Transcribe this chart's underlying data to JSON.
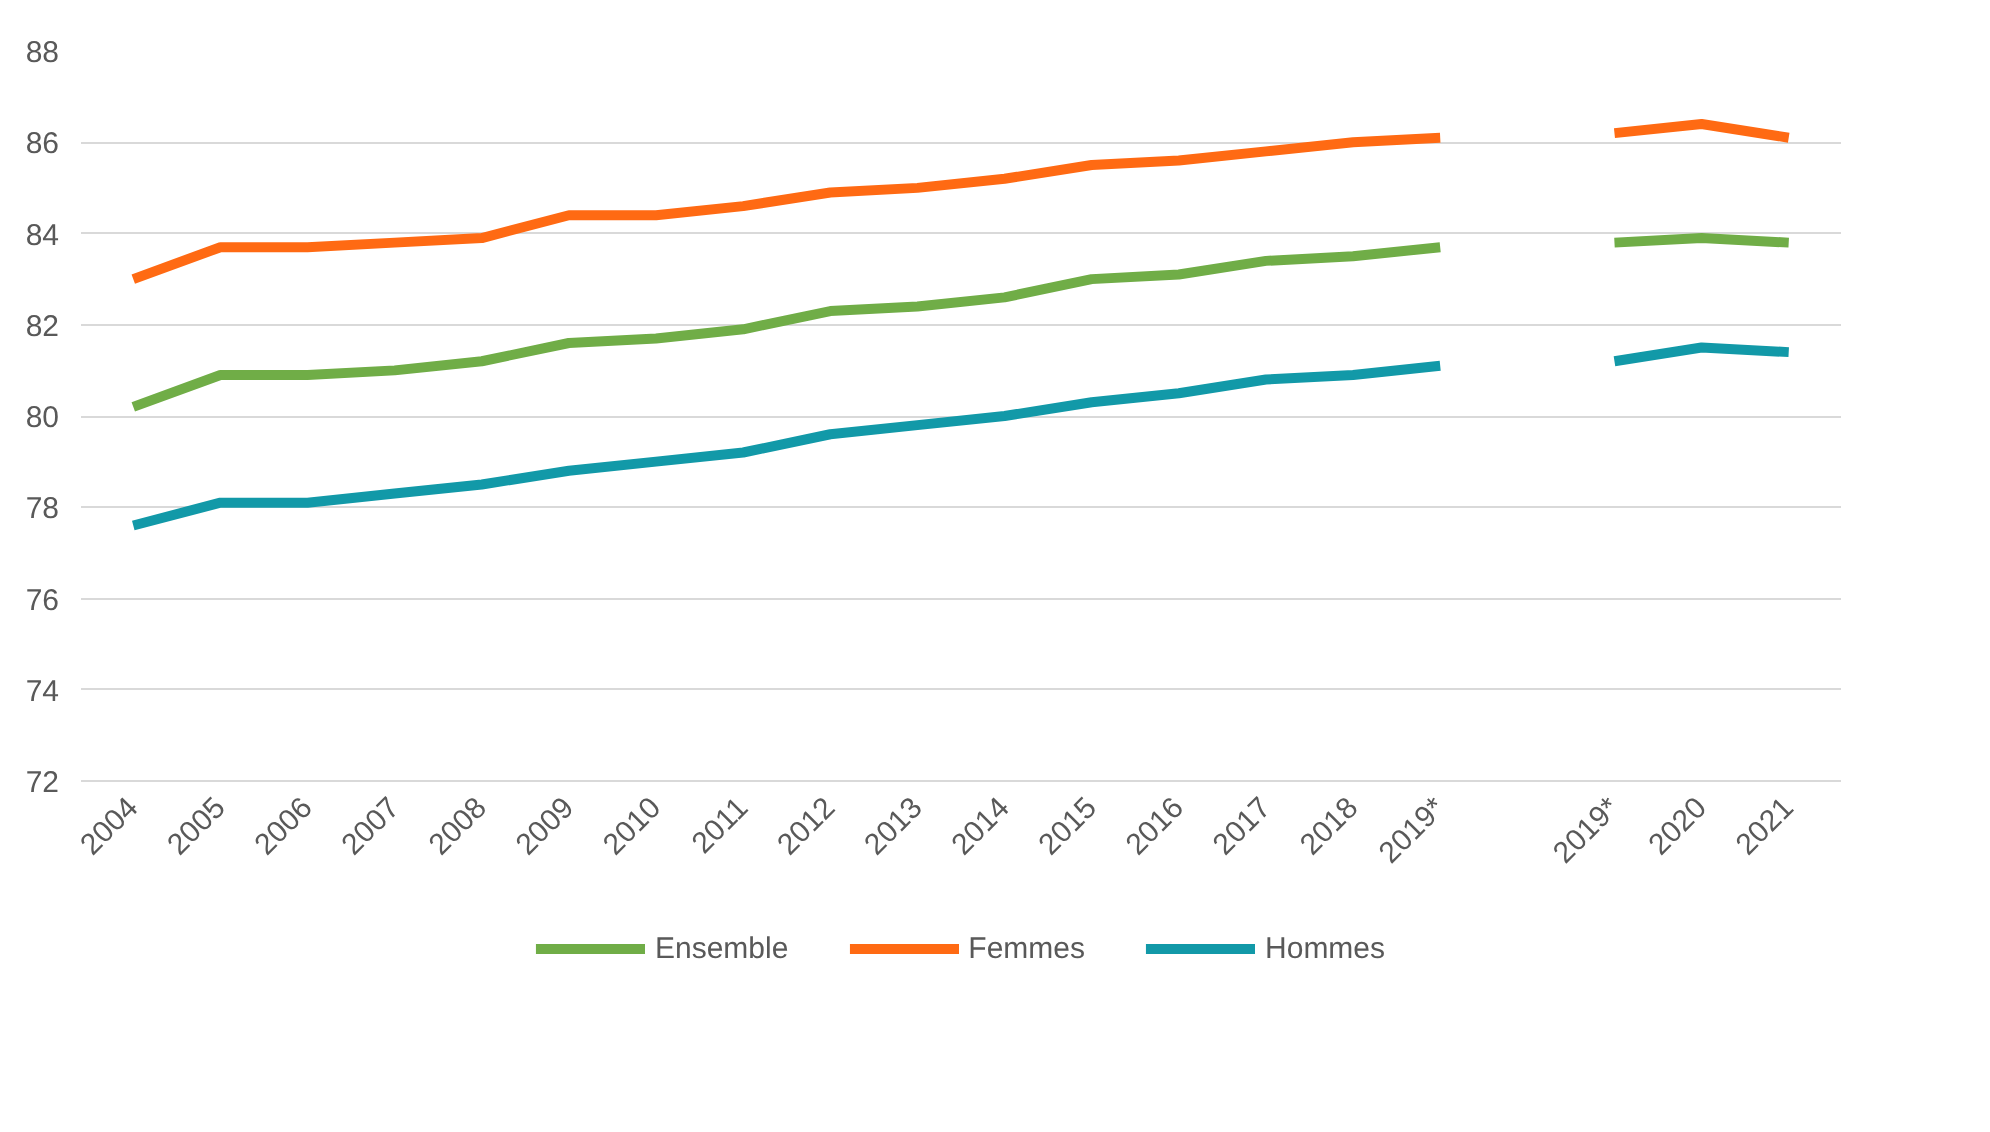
{
  "chart_data": {
    "type": "line",
    "categories": [
      "2004",
      "2005",
      "2006",
      "2007",
      "2008",
      "2009",
      "2010",
      "2011",
      "2012",
      "2013",
      "2014",
      "2015",
      "2016",
      "2017",
      "2018",
      "2019*",
      null,
      "2019*",
      "2020",
      "2021"
    ],
    "series": [
      {
        "name": "Ensemble",
        "color": "#70ad47",
        "values": [
          80.2,
          80.9,
          80.9,
          81.0,
          81.2,
          81.6,
          81.7,
          81.9,
          82.3,
          82.4,
          82.6,
          83.0,
          83.1,
          83.4,
          83.5,
          83.7,
          null,
          83.8,
          83.9,
          83.8
        ]
      },
      {
        "name": "Femmes",
        "color": "#ff6a13",
        "values": [
          83.0,
          83.7,
          83.7,
          83.8,
          83.9,
          84.4,
          84.4,
          84.6,
          84.9,
          85.0,
          85.2,
          85.5,
          85.6,
          85.8,
          86.0,
          86.1,
          null,
          86.2,
          86.4,
          86.1
        ]
      },
      {
        "name": "Hommes",
        "color": "#1299a8",
        "values": [
          77.6,
          78.1,
          78.1,
          78.3,
          78.5,
          78.8,
          79.0,
          79.2,
          79.6,
          79.8,
          80.0,
          80.3,
          80.5,
          80.8,
          80.9,
          81.1,
          null,
          81.2,
          81.5,
          81.4
        ]
      }
    ],
    "ylim": [
      72,
      88
    ],
    "yticks": [
      72,
      74,
      76,
      78,
      80,
      82,
      84,
      86,
      88
    ],
    "grid": "y",
    "legend": "bottom",
    "line_style": "solid"
  }
}
